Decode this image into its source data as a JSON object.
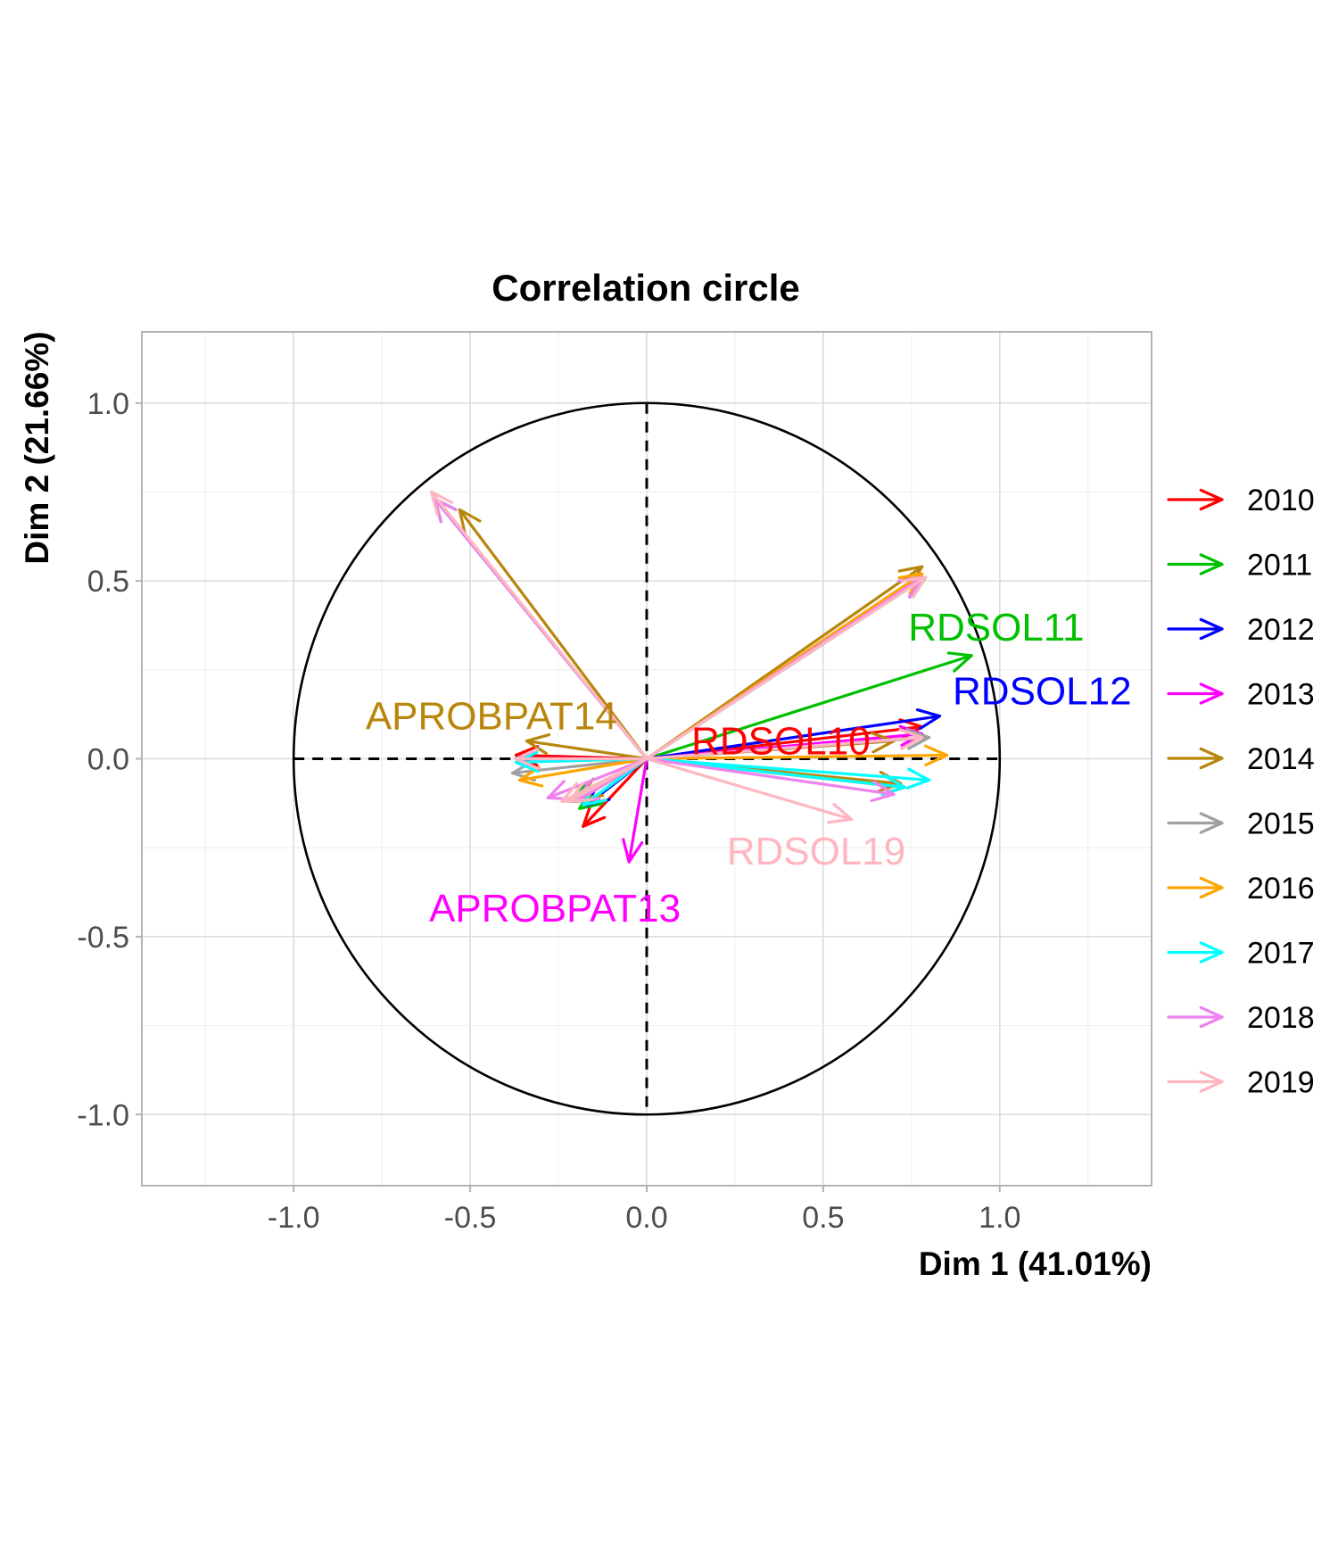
{
  "chart_data": {
    "type": "scatter",
    "subtype": "correlation-circle-vectors",
    "title": "Correlation circle",
    "xlabel": "Dim 1 (41.01%)",
    "ylabel": "Dim 2 (21.66%)",
    "xlim": [
      -1.43,
      1.43
    ],
    "ylim": [
      -1.2,
      1.2
    ],
    "x_ticks": [
      -1.0,
      -0.5,
      0.0,
      0.5,
      1.0
    ],
    "x_tick_labels": [
      "-1.0",
      "-0.5",
      "0.0",
      "0.5",
      "1.0"
    ],
    "y_ticks": [
      -1.0,
      -0.5,
      0.0,
      0.5,
      1.0
    ],
    "y_tick_labels": [
      "-1.0",
      "-0.5",
      "0.0",
      "0.5",
      "1.0"
    ],
    "grid": true,
    "unit_circle": true,
    "reference_lines": [
      0,
      0
    ],
    "legend_position": "right",
    "series": [
      {
        "name": "2010",
        "color": "#ff0000",
        "vectors": [
          [
            -0.6,
            0.73
          ],
          [
            0.78,
            0.51
          ],
          [
            0.78,
            0.09
          ],
          [
            -0.37,
            0.01
          ],
          [
            -0.18,
            -0.19
          ],
          [
            0.73,
            -0.08
          ],
          [
            -0.2,
            -0.12
          ]
        ]
      },
      {
        "name": "2011",
        "color": "#00c000",
        "vectors": [
          [
            -0.6,
            0.73
          ],
          [
            0.79,
            0.51
          ],
          [
            0.92,
            0.29
          ],
          [
            -0.37,
            0.0
          ],
          [
            -0.19,
            -0.14
          ],
          [
            0.73,
            -0.08
          ],
          [
            -0.21,
            -0.12
          ]
        ]
      },
      {
        "name": "2012",
        "color": "#0000ff",
        "vectors": [
          [
            -0.6,
            0.73
          ],
          [
            0.78,
            0.51
          ],
          [
            0.83,
            0.12
          ],
          [
            -0.37,
            0.0
          ],
          [
            -0.17,
            -0.13
          ],
          [
            0.73,
            -0.08
          ],
          [
            -0.2,
            -0.12
          ]
        ]
      },
      {
        "name": "2013",
        "color": "#ff00ff",
        "vectors": [
          [
            -0.6,
            0.73
          ],
          [
            0.78,
            0.51
          ],
          [
            0.78,
            0.07
          ],
          [
            -0.37,
            0.0
          ],
          [
            -0.05,
            -0.29
          ],
          [
            0.73,
            -0.08
          ],
          [
            -0.2,
            -0.12
          ]
        ]
      },
      {
        "name": "2014",
        "color": "#b8860b",
        "vectors": [
          [
            -0.53,
            0.7
          ],
          [
            0.78,
            0.54
          ],
          [
            0.7,
            0.05
          ],
          [
            -0.34,
            0.05
          ],
          [
            -0.18,
            -0.13
          ],
          [
            0.72,
            -0.07
          ],
          [
            -0.19,
            -0.11
          ]
        ]
      },
      {
        "name": "2015",
        "color": "#a0a0a0",
        "vectors": [
          [
            -0.6,
            0.73
          ],
          [
            0.79,
            0.51
          ],
          [
            0.8,
            0.06
          ],
          [
            -0.38,
            -0.04
          ],
          [
            -0.18,
            -0.13
          ],
          [
            0.73,
            -0.08
          ],
          [
            -0.2,
            -0.12
          ]
        ]
      },
      {
        "name": "2016",
        "color": "#ffa500",
        "vectors": [
          [
            -0.6,
            0.73
          ],
          [
            0.78,
            0.52
          ],
          [
            0.85,
            0.01
          ],
          [
            -0.36,
            -0.06
          ],
          [
            -0.18,
            -0.13
          ],
          [
            0.73,
            -0.08
          ],
          [
            -0.2,
            -0.12
          ]
        ]
      },
      {
        "name": "2017",
        "color": "#00ffff",
        "vectors": [
          [
            -0.6,
            0.73
          ],
          [
            0.79,
            0.51
          ],
          [
            0.8,
            -0.06
          ],
          [
            -0.37,
            -0.01
          ],
          [
            -0.18,
            -0.13
          ],
          [
            0.73,
            -0.08
          ],
          [
            -0.2,
            -0.12
          ]
        ]
      },
      {
        "name": "2018",
        "color": "#ee82ee",
        "vectors": [
          [
            -0.6,
            0.73
          ],
          [
            0.78,
            0.51
          ],
          [
            0.78,
            0.06
          ],
          [
            -0.37,
            0.0
          ],
          [
            -0.28,
            -0.11
          ],
          [
            0.7,
            -0.1
          ],
          [
            -0.2,
            -0.12
          ]
        ]
      },
      {
        "name": "2019",
        "color": "#ffb6c1",
        "vectors": [
          [
            -0.61,
            0.75
          ],
          [
            0.79,
            0.51
          ],
          [
            0.78,
            0.06
          ],
          [
            -0.37,
            0.0
          ],
          [
            -0.24,
            -0.12
          ],
          [
            0.58,
            -0.17
          ],
          [
            -0.22,
            -0.12
          ]
        ]
      }
    ],
    "annotations": [
      {
        "text": "RDSOL11",
        "x": 0.99,
        "y": 0.37,
        "color": "#00c000"
      },
      {
        "text": "RDSOL12",
        "x": 1.12,
        "y": 0.19,
        "color": "#0000ff"
      },
      {
        "text": "RDSOL10",
        "x": 0.38,
        "y": 0.05,
        "color": "#ff0000"
      },
      {
        "text": "APROBPAT14",
        "x": -0.44,
        "y": 0.12,
        "color": "#b8860b"
      },
      {
        "text": "RDSOL19",
        "x": 0.48,
        "y": -0.26,
        "color": "#ffb6c1"
      },
      {
        "text": "APROBPAT13",
        "x": -0.26,
        "y": -0.42,
        "color": "#ff00ff"
      }
    ]
  }
}
